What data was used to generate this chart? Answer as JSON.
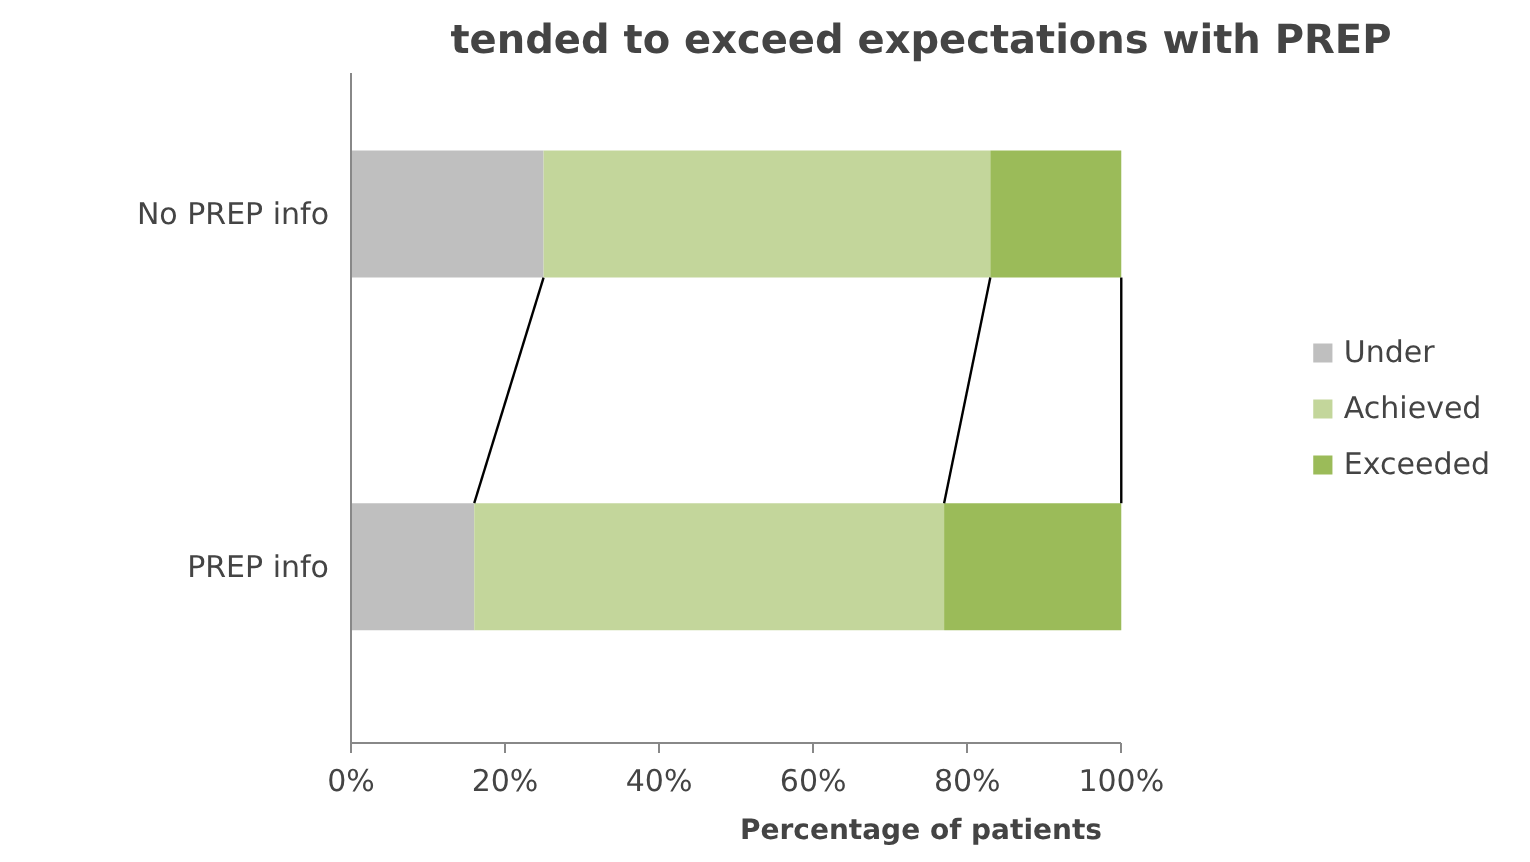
{
  "chart_data": {
    "type": "bar",
    "orientation": "horizontal",
    "stacked": true,
    "title": "tended to exceed expectations with PREP",
    "xlabel": "Percentage of patients",
    "categories": [
      "No PREP info",
      "PREP info"
    ],
    "series": [
      {
        "name": "Under",
        "color": "#bfbfbf",
        "values": [
          25,
          16
        ]
      },
      {
        "name": "Achieved",
        "color": "#c3d69b",
        "values": [
          58,
          61
        ]
      },
      {
        "name": "Exceeded",
        "color": "#9bbb59",
        "values": [
          17,
          23
        ]
      }
    ],
    "xlim": [
      0,
      100
    ],
    "xticks": [
      {
        "value": 0,
        "label": "0%"
      },
      {
        "value": 20,
        "label": "20%"
      },
      {
        "value": 40,
        "label": "40%"
      },
      {
        "value": 60,
        "label": "60%"
      },
      {
        "value": 80,
        "label": "80%"
      },
      {
        "value": 100,
        "label": "100%"
      }
    ],
    "legend": "right"
  }
}
